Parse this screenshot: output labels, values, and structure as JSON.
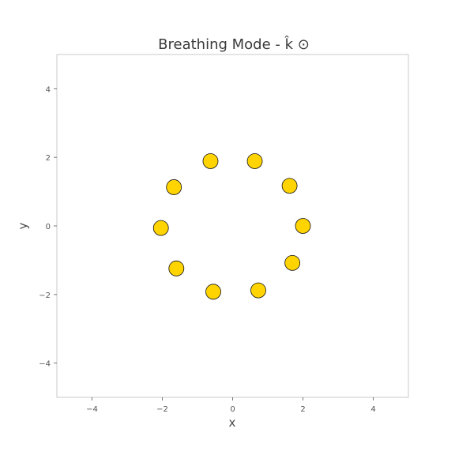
{
  "chart_data": {
    "type": "scatter",
    "title": "Breathing Mode - k̂ ⊙",
    "xlabel": "x",
    "ylabel": "y",
    "xlim": [
      -5,
      5
    ],
    "ylim": [
      -5,
      5
    ],
    "x_ticks": [
      -4,
      -2,
      0,
      2,
      4
    ],
    "y_ticks": [
      -4,
      -2,
      0,
      2,
      4
    ],
    "tick_labels": {
      "x": [
        "−4",
        "−2",
        "0",
        "2",
        "4"
      ],
      "y": [
        "−4",
        "−2",
        "0",
        "2",
        "4"
      ]
    },
    "grid": false,
    "points": [
      {
        "x": 2.0,
        "y": 0.0
      },
      {
        "x": 1.7,
        "y": -1.08
      },
      {
        "x": 0.73,
        "y": -1.88
      },
      {
        "x": -0.55,
        "y": -1.92
      },
      {
        "x": -1.6,
        "y": -1.24
      },
      {
        "x": -2.04,
        "y": -0.06
      },
      {
        "x": -1.67,
        "y": 1.13
      },
      {
        "x": -0.63,
        "y": 1.89
      },
      {
        "x": 0.63,
        "y": 1.89
      },
      {
        "x": 1.62,
        "y": 1.17
      }
    ],
    "marker_color": "#FFD400",
    "marker_edge": "#111111"
  }
}
